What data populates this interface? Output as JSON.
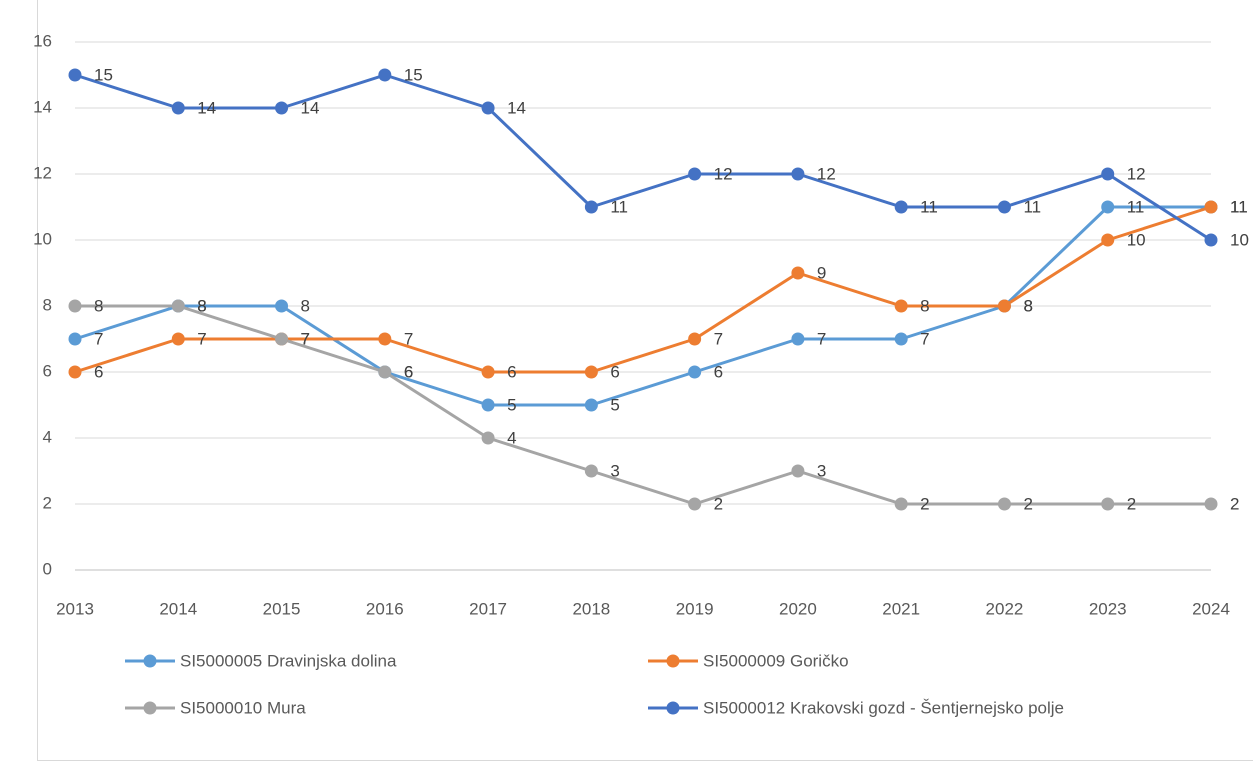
{
  "chart_data": {
    "type": "line",
    "categories": [
      "2013",
      "2014",
      "2015",
      "2016",
      "2017",
      "2018",
      "2019",
      "2020",
      "2021",
      "2022",
      "2023",
      "2024"
    ],
    "series": [
      {
        "name": "SI5000005 Dravinjska dolina",
        "color": "#5b9bd5",
        "values": [
          7,
          8,
          8,
          6,
          5,
          5,
          6,
          7,
          7,
          8,
          11,
          11
        ]
      },
      {
        "name": "SI5000009 Goričko",
        "color": "#ed7d31",
        "values": [
          6,
          7,
          7,
          7,
          6,
          6,
          7,
          9,
          8,
          8,
          10,
          11
        ]
      },
      {
        "name": "SI5000010 Mura",
        "color": "#a5a5a5",
        "values": [
          8,
          8,
          7,
          6,
          4,
          3,
          2,
          3,
          2,
          2,
          2,
          2
        ]
      },
      {
        "name": "SI5000012 Krakovski gozd - Šentjernejsko polje",
        "color": "#4472c4",
        "values": [
          15,
          14,
          14,
          15,
          14,
          11,
          12,
          12,
          11,
          11,
          12,
          10
        ]
      }
    ],
    "ylim": [
      0,
      16
    ],
    "yticks": [
      0,
      2,
      4,
      6,
      8,
      10,
      12,
      14,
      16
    ],
    "grid": true,
    "legend": "bottom"
  }
}
